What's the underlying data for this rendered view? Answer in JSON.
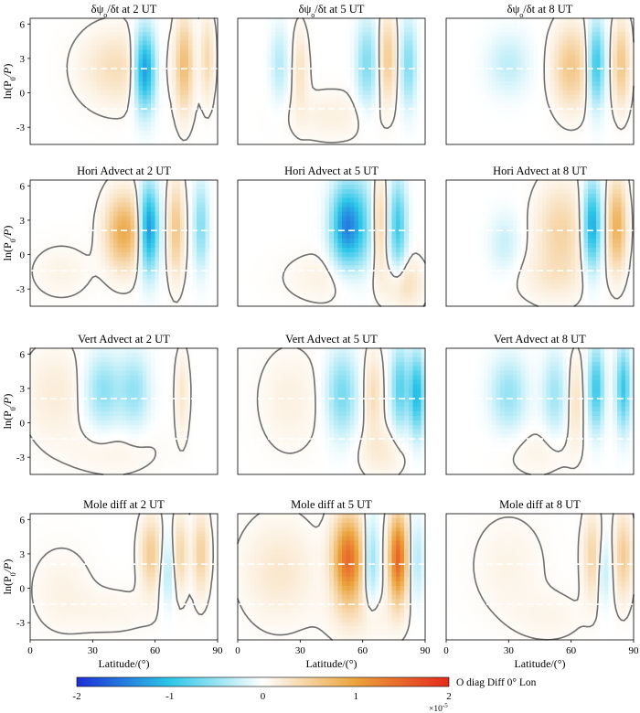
{
  "chart_data": {
    "type": "heatmap",
    "colormap_label": "O diag Diff 0° Lon",
    "colorbar": {
      "ticks": [
        "-2",
        "-1",
        "0",
        "1",
        "2"
      ],
      "tick_values": [
        -2,
        -1,
        0,
        1,
        2
      ],
      "exponent": "×10",
      "exponent_power": "-5",
      "range": [
        -2,
        2
      ]
    },
    "colors": {
      "negative_strong": "#1c2fd6",
      "negative_mid": "#2cc6e8",
      "neutral": "#ffffff",
      "positive_mid": "#eba23a",
      "positive_strong": "#e52a1c",
      "contour": "#707070",
      "reference_line": "#ffffff"
    },
    "axes": {
      "x_label": "Latitude/(°)",
      "x_ticks": [
        "0",
        "30",
        "60",
        "90"
      ],
      "x_range": [
        0,
        90
      ],
      "y_label_main": "ln(P",
      "y_label_sub0": "0",
      "y_label_mid": "/P",
      "y_label_end": ")",
      "y_ticks": [
        "6",
        "3",
        "0",
        "-3"
      ],
      "y_range": [
        -4.5,
        6.5
      ],
      "reference_levels": [
        2.1,
        -1.4
      ]
    },
    "panels": [
      {
        "title_pre": "δψ",
        "title_sub": "o",
        "title_post": "/δt at 2 UT",
        "blobs": [
          {
            "x": 42,
            "y": 2.2,
            "sx": 12,
            "sy": 2.2,
            "a": 0.35
          },
          {
            "x": 55,
            "y": 2.0,
            "sx": 3.6,
            "sy": 2.4,
            "a": -1.45
          },
          {
            "x": 74,
            "y": 2.4,
            "sx": 3.0,
            "sy": 2.8,
            "a": 0.7
          },
          {
            "x": 85,
            "y": 3.0,
            "sx": 2.2,
            "sy": 2.5,
            "a": 0.4
          }
        ]
      },
      {
        "title_pre": "δψ",
        "title_sub": "o",
        "title_post": "/δt at 5 UT",
        "blobs": [
          {
            "x": 20,
            "y": 2.5,
            "sx": 3,
            "sy": 2.2,
            "a": -0.35
          },
          {
            "x": 30,
            "y": 2.0,
            "sx": 2.5,
            "sy": 2.4,
            "a": 0.3
          },
          {
            "x": 62,
            "y": 2.5,
            "sx": 3.5,
            "sy": 2.6,
            "a": -0.6
          },
          {
            "x": 72,
            "y": 3.0,
            "sx": 2.8,
            "sy": 2.5,
            "a": 0.55
          },
          {
            "x": 82,
            "y": 2.5,
            "sx": 2.6,
            "sy": 2.6,
            "a": -0.6
          },
          {
            "x": 45,
            "y": -2.0,
            "sx": 14,
            "sy": 1.5,
            "a": 0.15
          }
        ]
      },
      {
        "title_pre": "δψ",
        "title_sub": "o",
        "title_post": "/δt at 8 UT",
        "blobs": [
          {
            "x": 30,
            "y": 2.5,
            "sx": 7,
            "sy": 1.8,
            "a": -0.3
          },
          {
            "x": 60,
            "y": 2.2,
            "sx": 6,
            "sy": 2.4,
            "a": 0.6
          },
          {
            "x": 72,
            "y": 2.5,
            "sx": 2.8,
            "sy": 2.5,
            "a": -1.0
          },
          {
            "x": 84,
            "y": 2.5,
            "sx": 2.8,
            "sy": 2.5,
            "a": 0.6
          }
        ]
      },
      {
        "title_pre": "Hori Advect at 2 UT",
        "title_sub": "",
        "title_post": "",
        "blobs": [
          {
            "x": 45,
            "y": 2.0,
            "sx": 6,
            "sy": 2.2,
            "a": 0.9
          },
          {
            "x": 57,
            "y": 2.3,
            "sx": 3.2,
            "sy": 2.6,
            "a": -1.4
          },
          {
            "x": 70,
            "y": 2.2,
            "sx": 2.6,
            "sy": 2.8,
            "a": 0.6
          },
          {
            "x": 82,
            "y": 2.5,
            "sx": 2.4,
            "sy": 2.6,
            "a": -0.6
          },
          {
            "x": 15,
            "y": -1.5,
            "sx": 10,
            "sy": 1.6,
            "a": 0.12
          }
        ]
      },
      {
        "title_pre": "Hori Advect at 5 UT",
        "title_sub": "",
        "title_post": "",
        "blobs": [
          {
            "x": 52,
            "y": 2.5,
            "sx": 5,
            "sy": 2.5,
            "a": -1.4
          },
          {
            "x": 60,
            "y": 2.5,
            "sx": 4,
            "sy": 3.0,
            "a": -0.5
          },
          {
            "x": 68,
            "y": 2.8,
            "sx": 2.4,
            "sy": 2.8,
            "a": 0.45
          },
          {
            "x": 77,
            "y": 2.5,
            "sx": 2.8,
            "sy": 2.8,
            "a": -0.9
          },
          {
            "x": 80,
            "y": -2.5,
            "sx": 6,
            "sy": 1.5,
            "a": 0.35
          },
          {
            "x": 45,
            "y": -2.0,
            "sx": 15,
            "sy": 1.5,
            "a": 0.15
          }
        ]
      },
      {
        "title_pre": "Hori Advect at 8 UT",
        "title_sub": "",
        "title_post": "",
        "blobs": [
          {
            "x": 28,
            "y": 1.0,
            "sx": 5,
            "sy": 1.8,
            "a": -0.25
          },
          {
            "x": 55,
            "y": 2.0,
            "sx": 8,
            "sy": 2.8,
            "a": 0.45
          },
          {
            "x": 70,
            "y": 2.5,
            "sx": 3.0,
            "sy": 2.6,
            "a": -1.25
          },
          {
            "x": 82,
            "y": 2.5,
            "sx": 3.0,
            "sy": 2.6,
            "a": 0.85
          },
          {
            "x": 50,
            "y": -2.0,
            "sx": 12,
            "sy": 1.5,
            "a": 0.15
          }
        ]
      },
      {
        "title_pre": "Vert Advect at 2 UT",
        "title_sub": "",
        "title_post": "",
        "blobs": [
          {
            "x": 35,
            "y": 2.8,
            "sx": 6,
            "sy": 2.2,
            "a": -0.55
          },
          {
            "x": 50,
            "y": 2.8,
            "sx": 5,
            "sy": 2.2,
            "a": -0.5
          },
          {
            "x": 12,
            "y": 2.5,
            "sx": 10,
            "sy": 2.8,
            "a": 0.2
          },
          {
            "x": 73,
            "y": 2.5,
            "sx": 2.2,
            "sy": 2.5,
            "a": 0.25
          },
          {
            "x": 40,
            "y": -2.5,
            "sx": 15,
            "sy": 1.5,
            "a": 0.12
          }
        ]
      },
      {
        "title_pre": "Vert Advect at 5 UT",
        "title_sub": "",
        "title_post": "",
        "blobs": [
          {
            "x": 50,
            "y": 2.5,
            "sx": 5,
            "sy": 2.5,
            "a": -0.65
          },
          {
            "x": 65,
            "y": 2.5,
            "sx": 3,
            "sy": 2.5,
            "a": 0.35
          },
          {
            "x": 78,
            "y": 3.0,
            "sx": 3,
            "sy": 2.5,
            "a": -0.8
          },
          {
            "x": 86,
            "y": 2.5,
            "sx": 2.5,
            "sy": 2.5,
            "a": -1.1
          },
          {
            "x": 25,
            "y": 2.0,
            "sx": 10,
            "sy": 3.0,
            "a": 0.15
          },
          {
            "x": 70,
            "y": -2.5,
            "sx": 8,
            "sy": 1.5,
            "a": 0.2
          }
        ]
      },
      {
        "title_pre": "Vert Advect at 8 UT",
        "title_sub": "",
        "title_post": "",
        "blobs": [
          {
            "x": 30,
            "y": 2.5,
            "sx": 6,
            "sy": 2.2,
            "a": -0.5
          },
          {
            "x": 52,
            "y": 2.5,
            "sx": 4,
            "sy": 2.4,
            "a": -0.45
          },
          {
            "x": 72,
            "y": 3.0,
            "sx": 2.6,
            "sy": 2.5,
            "a": -0.95
          },
          {
            "x": 85,
            "y": 3.0,
            "sx": 2.4,
            "sy": 2.5,
            "a": -0.95
          },
          {
            "x": 62,
            "y": 2.0,
            "sx": 2.5,
            "sy": 2.5,
            "a": 0.3
          },
          {
            "x": 45,
            "y": -2.5,
            "sx": 12,
            "sy": 1.5,
            "a": 0.12
          }
        ]
      },
      {
        "title_pre": "Mole diff at 2 UT",
        "title_sub": "",
        "title_post": "",
        "blobs": [
          {
            "x": 58,
            "y": 3.0,
            "sx": 3.5,
            "sy": 2.2,
            "a": 0.55
          },
          {
            "x": 66,
            "y": 1.5,
            "sx": 2.5,
            "sy": 2.2,
            "a": -0.35
          },
          {
            "x": 72,
            "y": 3.0,
            "sx": 2.5,
            "sy": 2.2,
            "a": 0.45
          },
          {
            "x": 82,
            "y": 3.0,
            "sx": 2.6,
            "sy": 2.4,
            "a": 0.5
          },
          {
            "x": 15,
            "y": 0.0,
            "sx": 10,
            "sy": 2.5,
            "a": 0.12
          },
          {
            "x": 40,
            "y": -2.0,
            "sx": 15,
            "sy": 1.4,
            "a": 0.1
          }
        ]
      },
      {
        "title_pre": "Mole diff at 5 UT",
        "title_sub": "",
        "title_post": "",
        "blobs": [
          {
            "x": 53,
            "y": 2.5,
            "sx": 5,
            "sy": 2.6,
            "a": 1.45
          },
          {
            "x": 64,
            "y": 2.5,
            "sx": 2.5,
            "sy": 2.5,
            "a": -0.55
          },
          {
            "x": 77,
            "y": 2.6,
            "sx": 3,
            "sy": 2.6,
            "a": 1.5
          },
          {
            "x": 86,
            "y": 2.5,
            "sx": 2.4,
            "sy": 2.4,
            "a": -0.35
          },
          {
            "x": 20,
            "y": 1.5,
            "sx": 12,
            "sy": 3.0,
            "a": 0.25
          },
          {
            "x": 60,
            "y": -2.5,
            "sx": 12,
            "sy": 1.5,
            "a": 0.15
          }
        ]
      },
      {
        "title_pre": "Mole diff at 8 UT",
        "title_sub": "",
        "title_post": "",
        "blobs": [
          {
            "x": 30,
            "y": 2.0,
            "sx": 12,
            "sy": 3.0,
            "a": 0.12
          },
          {
            "x": 70,
            "y": 2.8,
            "sx": 3,
            "sy": 2.5,
            "a": 0.45
          },
          {
            "x": 76,
            "y": 1.5,
            "sx": 2.2,
            "sy": 2.0,
            "a": -0.3
          },
          {
            "x": 85,
            "y": 2.8,
            "sx": 2.8,
            "sy": 2.5,
            "a": 0.55
          },
          {
            "x": 50,
            "y": -2.5,
            "sx": 12,
            "sy": 1.5,
            "a": 0.1
          }
        ]
      }
    ]
  }
}
